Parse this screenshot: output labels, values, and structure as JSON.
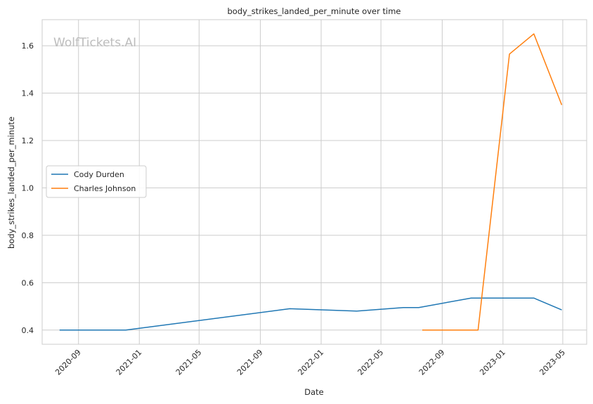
{
  "chart_data": {
    "type": "line",
    "title": "body_strikes_landed_per_minute over time",
    "xlabel": "Date",
    "ylabel": "body_strikes_landed_per_minute",
    "watermark": "WolfTickets.AI",
    "x_ticks": [
      "2020-09",
      "2021-01",
      "2021-05",
      "2021-09",
      "2022-01",
      "2022-05",
      "2022-09",
      "2023-01",
      "2023-05"
    ],
    "y_ticks": [
      "0.4",
      "0.6",
      "0.8",
      "1.0",
      "1.2",
      "1.4",
      "1.6"
    ],
    "xlim": [
      "2020-06-20",
      "2023-06-18"
    ],
    "ylim": [
      0.34,
      1.71
    ],
    "grid": true,
    "legend_position": "center-left",
    "series": [
      {
        "name": "Cody Durden",
        "color": "#1f77b4",
        "points": [
          {
            "x": "2020-07-25",
            "y": 0.4
          },
          {
            "x": "2020-12-05",
            "y": 0.4
          },
          {
            "x": "2021-10-30",
            "y": 0.49
          },
          {
            "x": "2022-03-13",
            "y": 0.48
          },
          {
            "x": "2022-06-15",
            "y": 0.495
          },
          {
            "x": "2022-07-16",
            "y": 0.495
          },
          {
            "x": "2022-10-29",
            "y": 0.535
          },
          {
            "x": "2023-03-04",
            "y": 0.535
          },
          {
            "x": "2023-04-29",
            "y": 0.485
          }
        ]
      },
      {
        "name": "Charles Johnson",
        "color": "#ff7f0e",
        "points": [
          {
            "x": "2022-07-23",
            "y": 0.4
          },
          {
            "x": "2022-11-12",
            "y": 0.4
          },
          {
            "x": "2023-01-14",
            "y": 1.565
          },
          {
            "x": "2023-03-04",
            "y": 1.65
          },
          {
            "x": "2023-04-29",
            "y": 1.35
          }
        ]
      }
    ]
  }
}
